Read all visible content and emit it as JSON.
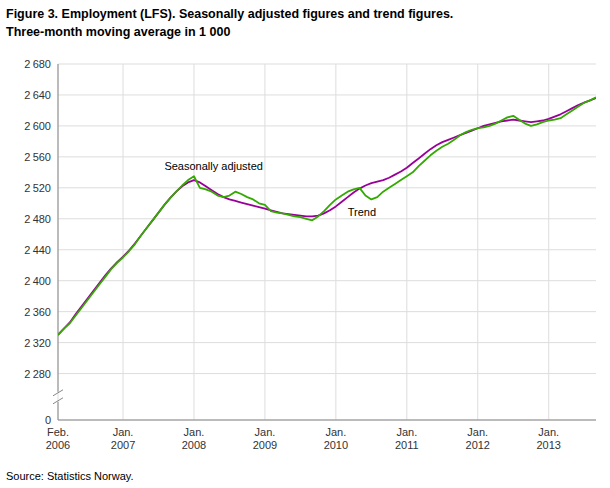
{
  "chart_data": {
    "type": "line",
    "title": "Figure 3. Employment (LFS). Seasonally adjusted figures and trend figures.",
    "subtitle": "Three-month moving average in 1 000",
    "annotations": [
      "Source: Statistics Norway."
    ],
    "grid": true,
    "ylim": [
      0,
      2680
    ],
    "yticks": [
      0,
      {
        "value": 2280,
        "label": "2 280"
      },
      {
        "value": 2320,
        "label": "2 320"
      },
      {
        "value": 2360,
        "label": "2 360"
      },
      {
        "value": 2400,
        "label": "2 400"
      },
      {
        "value": 2440,
        "label": "2 440"
      },
      {
        "value": 2480,
        "label": "2 480"
      },
      {
        "value": 2520,
        "label": "2 520"
      },
      {
        "value": 2560,
        "label": "2 560"
      },
      {
        "value": 2600,
        "label": "2 600"
      },
      {
        "value": 2640,
        "label": "2 640"
      },
      {
        "value": 2680,
        "label": "2 680"
      }
    ],
    "categories": [
      "Feb.\n2006",
      null,
      null,
      null,
      null,
      null,
      null,
      null,
      null,
      null,
      null,
      "Jan.\n2007",
      null,
      null,
      null,
      null,
      null,
      null,
      null,
      null,
      null,
      null,
      null,
      "Jan.\n2008",
      null,
      null,
      null,
      null,
      null,
      null,
      null,
      null,
      null,
      null,
      null,
      "Jan.\n2009",
      null,
      null,
      null,
      null,
      null,
      null,
      null,
      null,
      null,
      null,
      null,
      "Jan.\n2010",
      null,
      null,
      null,
      null,
      null,
      null,
      null,
      null,
      null,
      null,
      null,
      "Jan.\n2011",
      null,
      null,
      null,
      null,
      null,
      null,
      null,
      null,
      null,
      null,
      null,
      "Jan.\n2012",
      null,
      null,
      null,
      null,
      null,
      null,
      null,
      null,
      null,
      null,
      null,
      "Jan.\n2013",
      null,
      null,
      null,
      null,
      null,
      null,
      null,
      null
    ],
    "series": [
      {
        "name": "Seasonally adjusted",
        "color": "#33aa00",
        "values": [
          2330,
          2338,
          2345,
          2355,
          2365,
          2375,
          2385,
          2395,
          2405,
          2415,
          2423,
          2430,
          2438,
          2447,
          2458,
          2468,
          2478,
          2488,
          2498,
          2507,
          2515,
          2523,
          2530,
          2535,
          2520,
          2518,
          2515,
          2510,
          2508,
          2510,
          2515,
          2512,
          2508,
          2505,
          2500,
          2498,
          2490,
          2488,
          2487,
          2485,
          2483,
          2482,
          2480,
          2478,
          2483,
          2490,
          2498,
          2505,
          2510,
          2515,
          2518,
          2520,
          2510,
          2505,
          2508,
          2515,
          2520,
          2525,
          2530,
          2535,
          2540,
          2548,
          2555,
          2562,
          2568,
          2573,
          2577,
          2582,
          2588,
          2592,
          2595,
          2597,
          2598,
          2600,
          2603,
          2607,
          2611,
          2613,
          2608,
          2603,
          2600,
          2602,
          2605,
          2607,
          2608,
          2610,
          2615,
          2620,
          2625,
          2630,
          2633,
          2637
        ]
      },
      {
        "name": "Trend",
        "color": "#990099",
        "values": [
          2330,
          2338,
          2346,
          2357,
          2367,
          2377,
          2387,
          2397,
          2407,
          2416,
          2424,
          2431,
          2439,
          2448,
          2458,
          2468,
          2478,
          2488,
          2498,
          2507,
          2515,
          2522,
          2527,
          2530,
          2527,
          2522,
          2517,
          2512,
          2508,
          2505,
          2503,
          2501,
          2499,
          2497,
          2495,
          2493,
          2491,
          2489,
          2487,
          2486,
          2485,
          2484,
          2483,
          2483,
          2484,
          2487,
          2491,
          2496,
          2502,
          2508,
          2514,
          2519,
          2523,
          2526,
          2528,
          2530,
          2533,
          2537,
          2541,
          2546,
          2552,
          2558,
          2564,
          2570,
          2575,
          2579,
          2582,
          2585,
          2588,
          2591,
          2594,
          2597,
          2600,
          2602,
          2604,
          2606,
          2607,
          2608,
          2607,
          2606,
          2605,
          2606,
          2607,
          2609,
          2612,
          2615,
          2619,
          2623,
          2627,
          2630,
          2633,
          2636
        ]
      }
    ]
  }
}
